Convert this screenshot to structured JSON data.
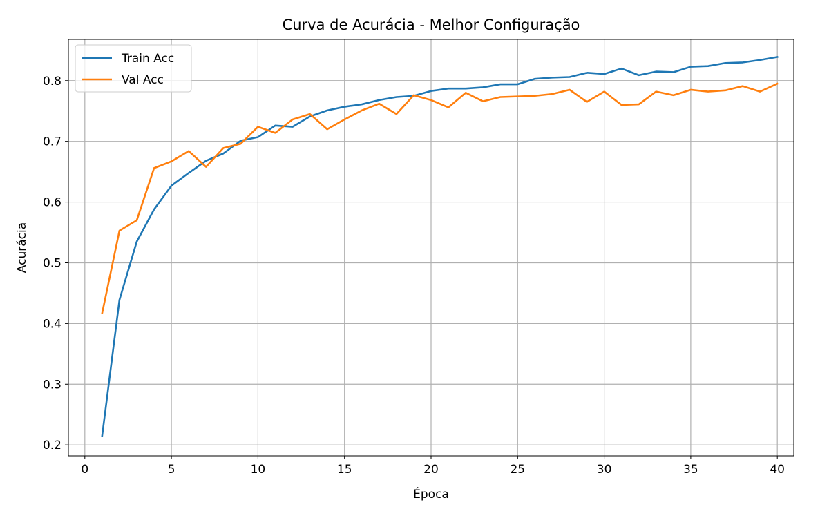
{
  "chart_data": {
    "type": "line",
    "title": "Curva de Acurácia - Melhor Configuração",
    "xlabel": "Época",
    "ylabel": "Acurácia",
    "xlim": [
      -0.95,
      40.95
    ],
    "ylim": [
      0.182,
      0.868
    ],
    "xticks": [
      0,
      5,
      10,
      15,
      20,
      25,
      30,
      35,
      40
    ],
    "yticks": [
      0.2,
      0.3,
      0.4,
      0.5,
      0.6,
      0.7,
      0.8
    ],
    "ytick_labels": [
      "0.2",
      "0.3",
      "0.4",
      "0.5",
      "0.6",
      "0.7",
      "0.8"
    ],
    "grid": true,
    "legend_position": "upper-left",
    "x": [
      1,
      2,
      3,
      4,
      5,
      6,
      7,
      8,
      9,
      10,
      11,
      12,
      13,
      14,
      15,
      16,
      17,
      18,
      19,
      20,
      21,
      22,
      23,
      24,
      25,
      26,
      27,
      28,
      29,
      30,
      31,
      32,
      33,
      34,
      35,
      36,
      37,
      38,
      39,
      40
    ],
    "series": [
      {
        "name": "Train Acc",
        "color": "#1f77b4",
        "values": [
          0.215,
          0.439,
          0.535,
          0.588,
          0.627,
          0.648,
          0.668,
          0.68,
          0.701,
          0.707,
          0.726,
          0.724,
          0.741,
          0.751,
          0.757,
          0.761,
          0.768,
          0.773,
          0.775,
          0.783,
          0.787,
          0.787,
          0.789,
          0.794,
          0.794,
          0.803,
          0.805,
          0.806,
          0.813,
          0.811,
          0.82,
          0.809,
          0.815,
          0.814,
          0.823,
          0.824,
          0.829,
          0.83,
          0.834,
          0.839
        ]
      },
      {
        "name": "Val Acc",
        "color": "#ff7f0e",
        "values": [
          0.417,
          0.553,
          0.57,
          0.656,
          0.667,
          0.684,
          0.658,
          0.689,
          0.696,
          0.724,
          0.714,
          0.736,
          0.745,
          0.72,
          0.736,
          0.751,
          0.762,
          0.745,
          0.776,
          0.768,
          0.756,
          0.78,
          0.766,
          0.773,
          0.774,
          0.775,
          0.778,
          0.785,
          0.765,
          0.782,
          0.76,
          0.761,
          0.782,
          0.776,
          0.785,
          0.782,
          0.784,
          0.791,
          0.782,
          0.795
        ]
      }
    ]
  }
}
